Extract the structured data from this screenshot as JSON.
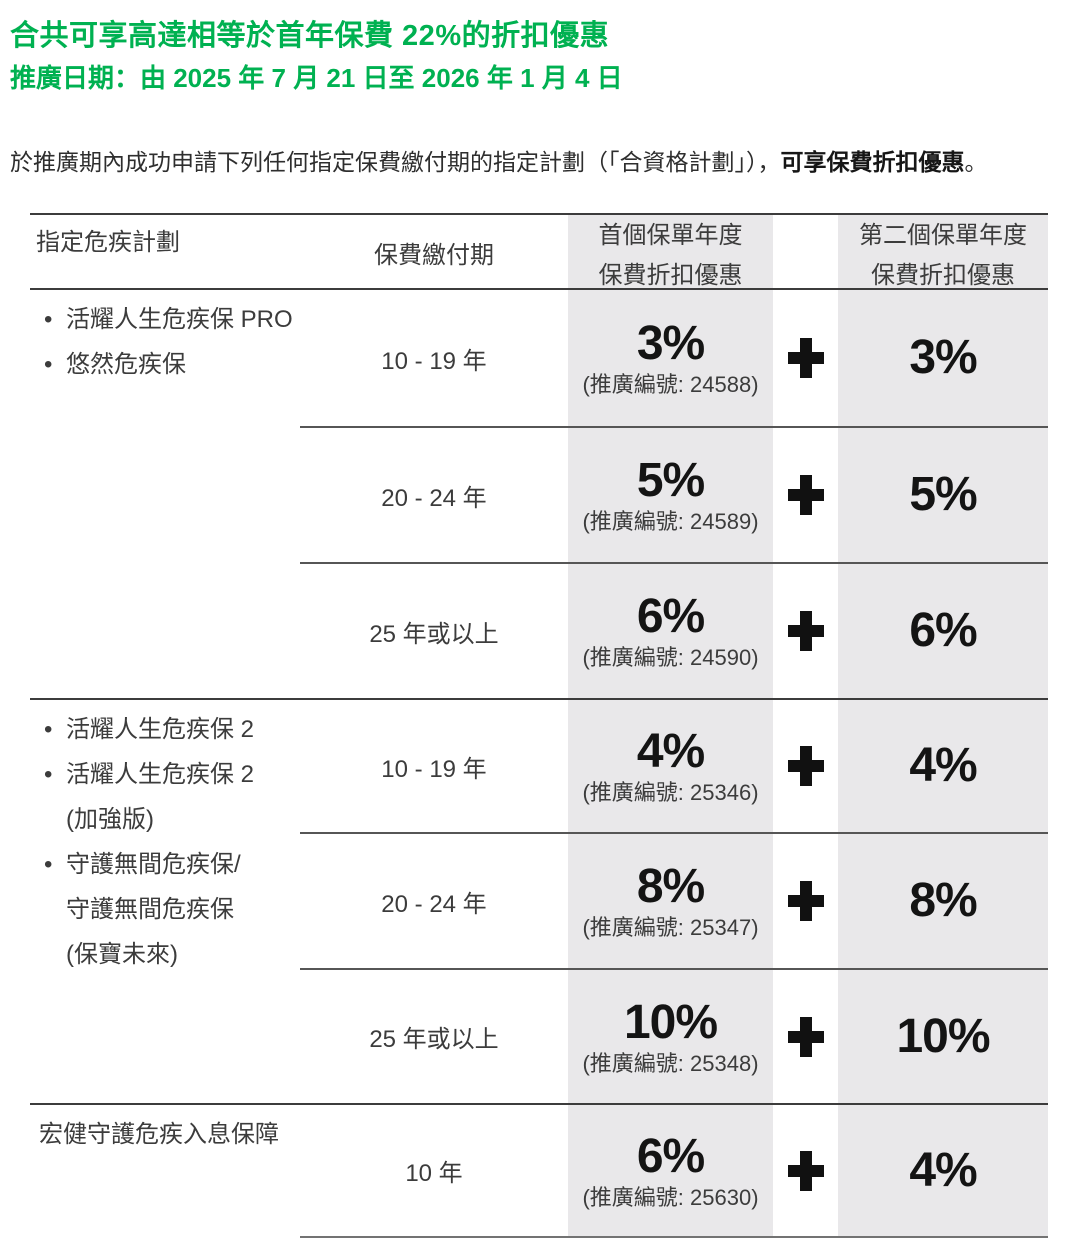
{
  "page": {
    "title": "合共可享高達相等於首年保費 22%的折扣優惠",
    "promo_period": "推廣日期：由 2025 年 7 月 21 日至 2026 年 1 月 4 日",
    "intro_regular": "於推廣期內成功申請下列任何指定保費繳付期的指定計劃（「合資格計劃」），",
    "intro_bold": "可享保費折扣優惠",
    "intro_end": "。"
  },
  "colors": {
    "brand_green": "#00B151",
    "cell_gray": "#E9E8EA"
  },
  "table": {
    "headers": {
      "plan": "指定危疾計劃",
      "period": "保費繳付期",
      "first_year_line1": "首個保單年度",
      "first_year_line2": "保費折扣優惠",
      "plus": "+",
      "second_year_line1": "第二個保單年度",
      "second_year_line2": "保費折扣優惠"
    },
    "sections": [
      {
        "plans": [
          {
            "bullet": true,
            "text": "活耀人生危疾保 PRO"
          },
          {
            "bullet": true,
            "text": "悠然危疾保"
          }
        ],
        "rows": [
          {
            "period": "10 - 19 年",
            "first_discount": "3%",
            "promo_code": "(推廣編號: 24588)",
            "second_discount": "3%"
          },
          {
            "period": "20 - 24 年",
            "first_discount": "5%",
            "promo_code": "(推廣編號: 24589)",
            "second_discount": "5%"
          },
          {
            "period": "25 年或以上",
            "first_discount": "6%",
            "promo_code": "(推廣編號: 24590)",
            "second_discount": "6%"
          }
        ]
      },
      {
        "plans": [
          {
            "bullet": true,
            "text": "活耀人生危疾保 2"
          },
          {
            "bullet": true,
            "text": "活耀人生危疾保 2"
          },
          {
            "bullet": false,
            "text": "(加強版)"
          },
          {
            "bullet": true,
            "text": "守護無間危疾保/"
          },
          {
            "bullet": false,
            "text": "守護無間危疾保"
          },
          {
            "bullet": false,
            "text": "(保寶未來)"
          }
        ],
        "rows": [
          {
            "period": "10 - 19 年",
            "first_discount": "4%",
            "promo_code": "(推廣編號: 25346)",
            "second_discount": "4%"
          },
          {
            "period": "20 - 24 年",
            "first_discount": "8%",
            "promo_code": "(推廣編號: 25347)",
            "second_discount": "8%"
          },
          {
            "period": "25 年或以上",
            "first_discount": "10%",
            "promo_code": "(推廣編號: 25348)",
            "second_discount": "10%"
          }
        ]
      },
      {
        "plans": [
          {
            "bullet": false,
            "text": "宏健守護危疾入息保障"
          }
        ],
        "rows": [
          {
            "period": "10 年",
            "first_discount": "6%",
            "promo_code": "(推廣編號: 25630)",
            "second_discount": "4%"
          }
        ]
      }
    ]
  }
}
